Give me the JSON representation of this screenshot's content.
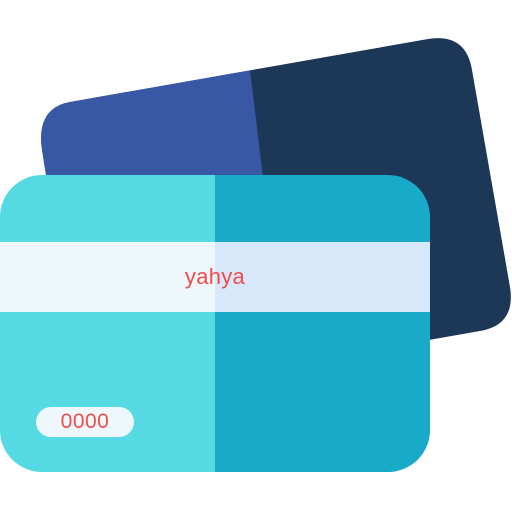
{
  "card": {
    "holder_name": "yahya",
    "number": "0000"
  },
  "colors": {
    "back_card_left": "#3858a6",
    "back_card_right": "#1d3757",
    "front_card_left": "#55d9e3",
    "front_card_right": "#19a9c9",
    "stripe_left": "#eef7fc",
    "stripe_right": "#d8e8fb",
    "text": "#f24b4b"
  },
  "icons": [
    "credit-card-icon"
  ]
}
